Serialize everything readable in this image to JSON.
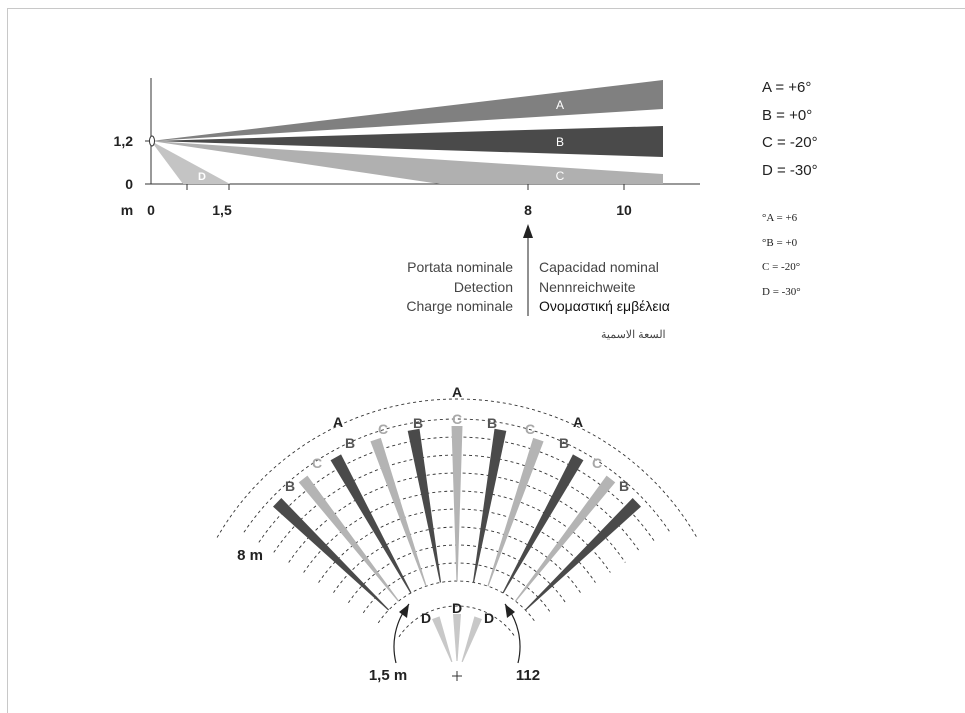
{
  "side_view": {
    "height_label": "1,2",
    "zero_label": "0",
    "unit_label": "m",
    "x_ticks": [
      "0",
      "1,5",
      "8",
      "10"
    ],
    "beams": [
      {
        "id": "A",
        "label": "A",
        "color": "#808080"
      },
      {
        "id": "B",
        "label": "B",
        "color": "#4a4a4a"
      },
      {
        "id": "C",
        "label": "C",
        "color": "#b0b0b0"
      },
      {
        "id": "D",
        "label": "D",
        "color": "#c4c4c4"
      }
    ]
  },
  "legend_sans": [
    "A = +6°",
    "B = +0°",
    "C = -20°",
    "D = -30°"
  ],
  "legend_serif": [
    "°A = +6",
    "°B = +0",
    "C = -20°",
    "D = -30°"
  ],
  "range_labels": {
    "left": [
      "Portata nominale",
      "Detection",
      "Charge nominale"
    ],
    "right": [
      "Capacidad nominal",
      "Nennreichweite",
      "Ονομαστική εμβέλεια"
    ],
    "arabic": "السعة الاسمية"
  },
  "top_view": {
    "outer_labels": [
      "A",
      "A",
      "A"
    ],
    "b_labels": [
      "B",
      "B",
      "B",
      "B",
      "B",
      "B"
    ],
    "c_labels": [
      "C",
      "C",
      "C",
      "C",
      "C"
    ],
    "d_labels": [
      "D",
      "D",
      "D"
    ],
    "distance_8": "8 m",
    "distance_1_5": "1,5 m",
    "angle": "112"
  },
  "colors": {
    "dark": "#4a4a4a",
    "light": "#b4b4b4",
    "mid": "#808080",
    "text_c": "#a8a8a8"
  }
}
